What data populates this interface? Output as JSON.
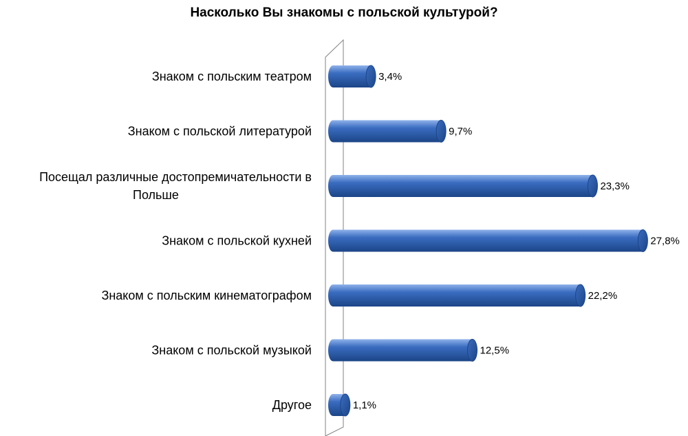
{
  "chart_data": {
    "type": "bar",
    "orientation": "horizontal",
    "title": "Насколько Вы знакомы с польской культурой?",
    "categories": [
      "Знаком с польским театром",
      "Знаком с польской литературой",
      "Посещал различные достопремичательности в Польше",
      "Знаком с польской кухней",
      "Знаком с польским кинематографом",
      "Знаком с польской музыкой",
      "Другое"
    ],
    "category_lines": [
      [
        "Знаком с польским театром"
      ],
      [
        "Знаком с польской литературой"
      ],
      [
        "Посещал различные достопремичательности в",
        "Польше"
      ],
      [
        "Знаком с польской кухней"
      ],
      [
        "Знаком с польским кинематографом"
      ],
      [
        "Знаком с польской музыкой"
      ],
      [
        "Другое"
      ]
    ],
    "values": [
      3.4,
      9.7,
      23.3,
      27.8,
      22.2,
      12.5,
      1.1
    ],
    "data_labels": [
      "3,4%",
      "9,7%",
      "23,3%",
      "27,8%",
      "22,2%",
      "12,5%",
      "1,1%"
    ],
    "xlim": [
      0,
      28
    ],
    "unit": "%",
    "grid": false,
    "legend": "none",
    "colors": {
      "bar_dark": "#1c4587",
      "bar_mid": "#3a6cc0",
      "bar_light": "#8fb2ea",
      "axis": "#808080"
    }
  }
}
